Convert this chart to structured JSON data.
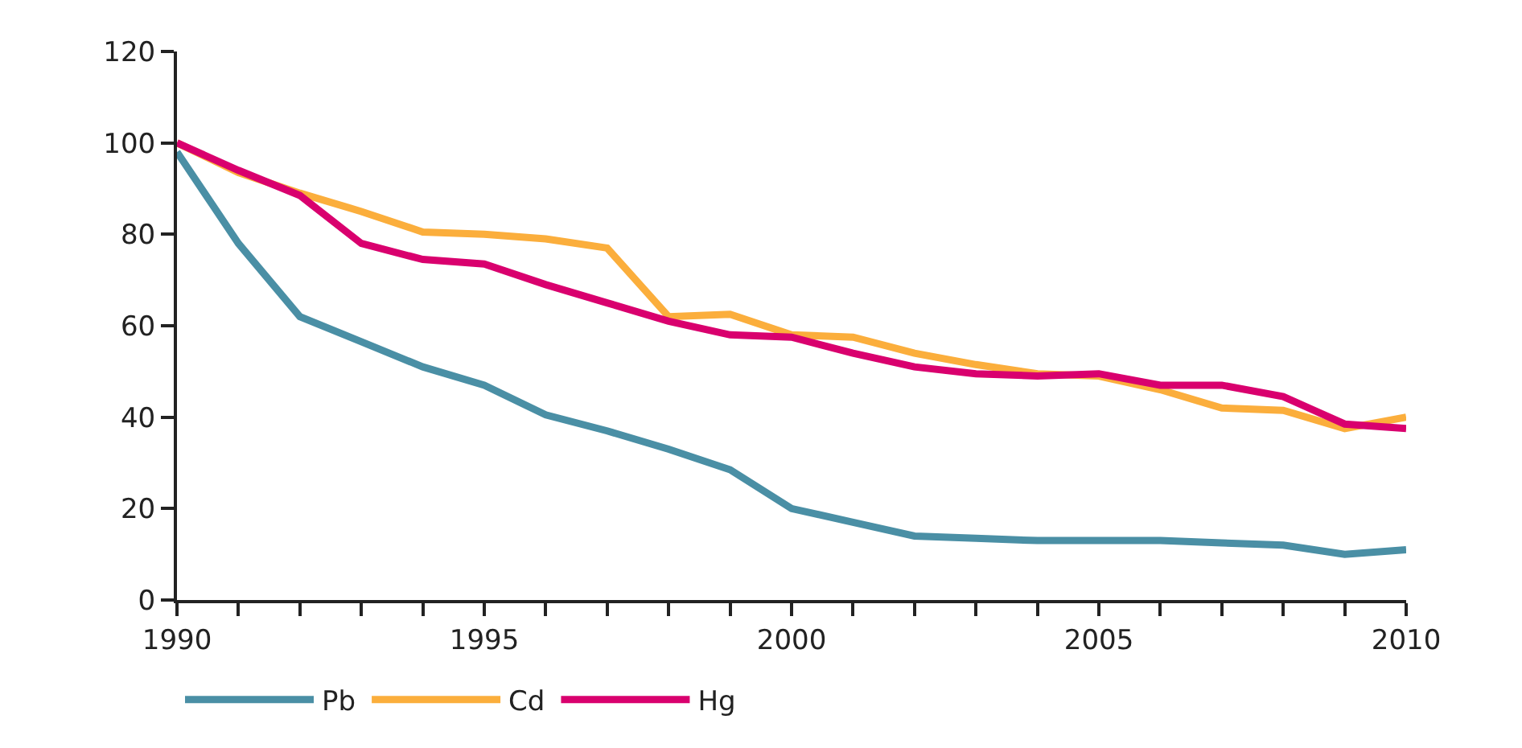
{
  "chart_data": {
    "type": "line",
    "x": [
      1990,
      1991,
      1992,
      1993,
      1994,
      1995,
      1996,
      1997,
      1998,
      1999,
      2000,
      2001,
      2002,
      2003,
      2004,
      2005,
      2006,
      2007,
      2008,
      2009,
      2010
    ],
    "series": [
      {
        "name": "Pb",
        "color": "#4a8fa5",
        "values": [
          98,
          78,
          62,
          56.5,
          51,
          47,
          40.5,
          37,
          33,
          28.5,
          20,
          17,
          14,
          13.5,
          13,
          13,
          13,
          12.5,
          12,
          10,
          11
        ]
      },
      {
        "name": "Cd",
        "color": "#fbae3c",
        "values": [
          100,
          93.5,
          89,
          85,
          80.5,
          80,
          79,
          77,
          62,
          62.5,
          58,
          57.5,
          54,
          51.5,
          49.5,
          49,
          46,
          42,
          41.5,
          37.5,
          40
        ]
      },
      {
        "name": "Hg",
        "color": "#d9006e",
        "values": [
          100,
          94,
          88.5,
          78,
          74.5,
          73.5,
          69,
          65,
          61,
          58,
          57.5,
          54,
          51,
          49.5,
          49,
          49.5,
          47,
          47,
          44.5,
          38.5,
          37.5
        ]
      }
    ],
    "xlim": [
      1990,
      2010
    ],
    "xticks": [
      1990,
      {
        "value": 1991,
        "label": null
      },
      {
        "value": 1992,
        "label": null
      },
      {
        "value": 1993,
        "label": null
      },
      {
        "value": 1994,
        "label": null
      },
      1995,
      {
        "value": 1996,
        "label": null
      },
      {
        "value": 1997,
        "label": null
      },
      {
        "value": 1998,
        "label": null
      },
      {
        "value": 1999,
        "label": null
      },
      2000,
      {
        "value": 2001,
        "label": null
      },
      {
        "value": 2002,
        "label": null
      },
      {
        "value": 2003,
        "label": null
      },
      {
        "value": 2004,
        "label": null
      },
      2005,
      {
        "value": 2006,
        "label": null
      },
      {
        "value": 2007,
        "label": null
      },
      {
        "value": 2008,
        "label": null
      },
      {
        "value": 2009,
        "label": null
      },
      2010
    ],
    "ylim": [
      0,
      120
    ],
    "yticks": [
      0,
      20,
      40,
      60,
      80,
      100,
      120
    ],
    "grid": false,
    "legend": "bottom",
    "marker": "none",
    "line_style": "solid"
  }
}
